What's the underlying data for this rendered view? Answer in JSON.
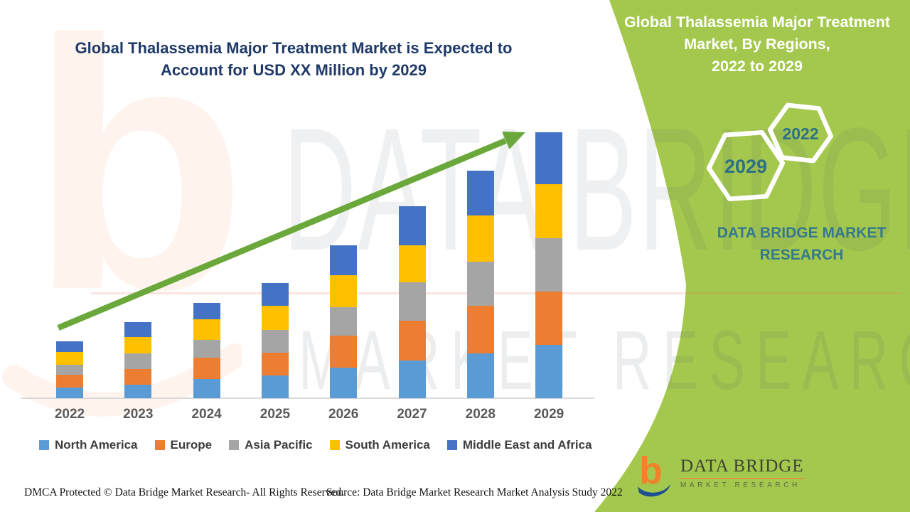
{
  "main_title": {
    "line1": "Global Thalassemia Major Treatment Market is Expected to",
    "line2": "Account for USD XX Million by 2029"
  },
  "side_panel": {
    "title_line1": "Global Thalassemia Major Treatment",
    "title_line2": "Market, By Regions,",
    "title_line3": "2022 to 2029",
    "hexagon_large_year": "2029",
    "hexagon_small_year": "2022",
    "brand_line1": "DATA BRIDGE MARKET",
    "brand_line2": "RESEARCH"
  },
  "logo": {
    "name": "DATA BRIDGE",
    "subtitle": "MARKET RESEARCH"
  },
  "watermark": {
    "monogram": "b",
    "big_text": "DATA BRIDGE",
    "row2_text": "MARKET RESEARCH"
  },
  "footer": {
    "dmca": "DMCA Protected © Data Bridge Market Research- All Rights Reserved.",
    "source": "Source: Data Bridge Market Research Market Analysis Study 2022"
  },
  "chart_data": {
    "type": "bar",
    "stacked": true,
    "title": "Global Thalassemia Major Treatment Market is Expected to Account for USD XX Million by 2029",
    "categories": [
      "2022",
      "2023",
      "2024",
      "2025",
      "2026",
      "2027",
      "2028",
      "2029"
    ],
    "series": [
      {
        "name": "North America",
        "color": "#5B9BD5",
        "values": [
          15,
          19,
          27,
          32,
          43,
          53,
          63,
          75
        ]
      },
      {
        "name": "Europe",
        "color": "#ED7D31",
        "values": [
          18,
          22,
          30,
          32,
          45,
          56,
          67,
          75
        ]
      },
      {
        "name": "Asia Pacific",
        "color": "#A5A5A5",
        "values": [
          14,
          22,
          25,
          32,
          40,
          54,
          62,
          75
        ]
      },
      {
        "name": "South America",
        "color": "#FFC000",
        "values": [
          18,
          23,
          29,
          34,
          45,
          52,
          65,
          76
        ]
      },
      {
        "name": "Middle East and Africa",
        "color": "#4472C4",
        "values": [
          15,
          21,
          23,
          32,
          42,
          55,
          63,
          73
        ]
      }
    ],
    "totals": [
      80,
      107,
      134,
      162,
      215,
      270,
      320,
      374
    ],
    "xlabel": "",
    "ylabel": "",
    "ylim": [
      0,
      400
    ],
    "y_axis_visible": false,
    "grid": false,
    "legend_position": "bottom",
    "trend_arrow": {
      "color": "#6BA83C",
      "direction": "up"
    }
  },
  "colors": {
    "band_green": "#A4C84E",
    "title_blue": "#1F3A68",
    "brand_teal": "#35788F",
    "hex_year_teal": "#2D7086",
    "axis_gray": "#D9D9D9",
    "x_label_gray": "#595959",
    "arrow_green": "#6BA83C",
    "logo_orange": "#F08229",
    "logo_navy": "#1D4F91"
  }
}
